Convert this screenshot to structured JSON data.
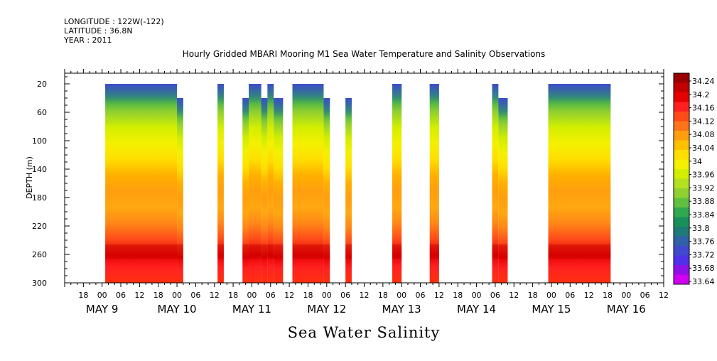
{
  "meta": {
    "longitude": "LONGITUDE : 122W(-122)",
    "latitude": "LATITUDE : 36.8N",
    "year": "YEAR : 2011"
  },
  "chart_data": {
    "type": "heatmap",
    "title": "Hourly Gridded MBARI Mooring M1 Sea Water Temperature and Salinity Observations",
    "ylabel": "DEPTH (m)",
    "xlabel": "Sea Water Salinity",
    "x_hour_ticks": [
      "18",
      "00",
      "06",
      "12",
      "18",
      "00",
      "06",
      "12",
      "18",
      "00",
      "06",
      "12",
      "18",
      "00",
      "06",
      "12",
      "18",
      "00",
      "06",
      "12",
      "18",
      "00",
      "06",
      "12",
      "18",
      "00",
      "06",
      "12",
      "18",
      "00",
      "06",
      "12"
    ],
    "x_day_labels": [
      {
        "label": "MAY  9",
        "hours": 0
      },
      {
        "label": "MAY 10",
        "hours": 24
      },
      {
        "label": "MAY 11",
        "hours": 48
      },
      {
        "label": "MAY 12",
        "hours": 72
      },
      {
        "label": "MAY 13",
        "hours": 96
      },
      {
        "label": "MAY 14",
        "hours": 120
      },
      {
        "label": "MAY 15",
        "hours": 144
      },
      {
        "label": "MAY 16",
        "hours": 168
      }
    ],
    "x_range_hours": [
      -12,
      180
    ],
    "y_ticks": [
      20,
      60,
      100,
      140,
      180,
      220,
      260,
      300
    ],
    "ylim": [
      300,
      5
    ],
    "colorbar": {
      "labels": [
        34.24,
        34.2,
        34.16,
        34.12,
        34.08,
        34.04,
        34,
        33.96,
        33.92,
        33.88,
        33.84,
        33.8,
        33.76,
        33.72,
        33.68,
        33.64
      ],
      "colors": [
        "#990000",
        "#c30000",
        "#e60000",
        "#ff2020",
        "#ff4a1a",
        "#ff7418",
        "#ff9e0e",
        "#ffc000",
        "#ffde00",
        "#f4f000",
        "#d4ee00",
        "#b4e020",
        "#90d030",
        "#60c040",
        "#30a850",
        "#18905a",
        "#207a78",
        "#3060a8",
        "#4048d0",
        "#5030e8",
        "#9010e8",
        "#d000f0"
      ]
    },
    "segments": [
      {
        "start": 1,
        "end": 24,
        "top": 20
      },
      {
        "start": 24,
        "end": 26,
        "top": 40
      },
      {
        "start": 37,
        "end": 39,
        "top": 20
      },
      {
        "start": 45,
        "end": 49,
        "top": 40
      },
      {
        "start": 47,
        "end": 51,
        "top": 20
      },
      {
        "start": 51,
        "end": 53,
        "top": 40
      },
      {
        "start": 53,
        "end": 55,
        "top": 20
      },
      {
        "start": 55,
        "end": 58,
        "top": 40
      },
      {
        "start": 61,
        "end": 71,
        "top": 20
      },
      {
        "start": 71,
        "end": 73,
        "top": 40
      },
      {
        "start": 78,
        "end": 80,
        "top": 40
      },
      {
        "start": 93,
        "end": 96,
        "top": 20
      },
      {
        "start": 105,
        "end": 108,
        "top": 20
      },
      {
        "start": 125,
        "end": 127,
        "top": 20
      },
      {
        "start": 127,
        "end": 130,
        "top": 40
      },
      {
        "start": 143,
        "end": 163,
        "top": 20
      }
    ]
  }
}
